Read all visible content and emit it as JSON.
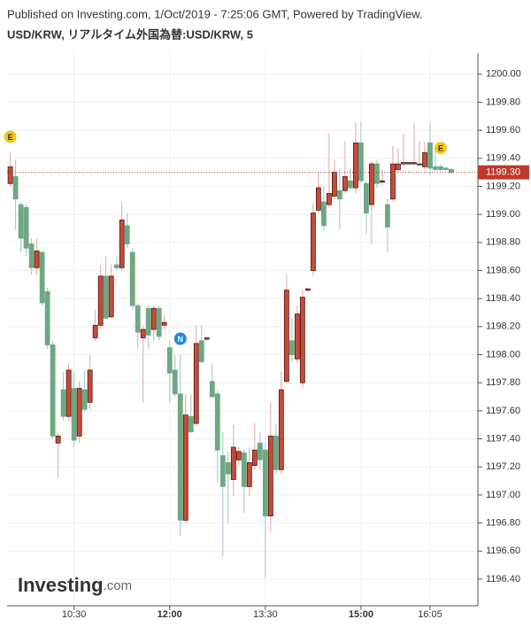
{
  "chart_data": {
    "type": "candlestick",
    "subtitle": "Published on Investing.com, 1/Oct/2019 - 7:25:06 GMT, Powered by TradingView.",
    "title": "USD/KRW, リアルタイム外国為替:USD/KRW, 5",
    "watermark": {
      "main": "Investing",
      "suffix": ".com"
    },
    "up_color": "#c94a3a",
    "down_color": "#6ea882",
    "up_wick": "#e6a3a3",
    "down_wick": "#9cc3c9",
    "x": [
      570,
      575,
      580,
      585,
      590,
      595,
      600,
      605,
      610,
      615,
      620,
      625,
      630,
      635,
      640,
      645,
      650,
      655,
      660,
      665,
      670,
      675,
      680,
      685,
      690,
      695,
      700,
      705,
      710,
      715,
      720,
      725,
      730,
      735,
      740,
      745,
      750,
      755,
      760,
      765,
      770,
      775,
      780,
      785,
      790,
      795,
      800,
      805,
      810,
      815,
      820,
      825,
      830,
      835,
      840,
      845,
      850,
      855,
      860,
      865,
      870,
      875,
      880,
      885,
      890,
      895,
      900,
      905,
      910,
      915,
      920,
      925,
      930,
      935,
      940,
      945,
      950,
      955,
      960,
      965,
      970,
      975,
      980,
      985
    ],
    "open": [
      1199.22,
      1199.27,
      1199.07,
      1199.05,
      1198.79,
      1198.62,
      1198.73,
      1198.45,
      1198.07,
      1197.37,
      1197.75,
      1197.56,
      1197.76,
      1197.42,
      1197.75,
      1197.66,
      1198.12,
      1198.21,
      1198.56,
      1198.27,
      1198.64,
      1198.62,
      1198.92,
      1198.73,
      1198.35,
      1198.12,
      1198.33,
      1198.18,
      1198.33,
      1198.21,
      1198.05,
      1197.89,
      1197.72,
      1196.82,
      1197.56,
      1197.51,
      1198.1,
      1198.11,
      1197.81,
      1197.72,
      1197.28,
      1197.23,
      1197.11,
      1197.25,
      1197.3,
      1197.06,
      1197.21,
      1197.37,
      1197.32,
      1196.85,
      1197.42,
      1197.18,
      1197.81,
      1198.1,
      1197.97,
      1197.8,
      1198.46,
      1198.6,
      1199.03,
      1199.09,
      1199.07,
      1199.13,
      1199.17,
      1199.17,
      1199.24,
      1199.19,
      1199.51,
      1199.22,
      1199.07,
      1199.36,
      1199.23,
      1199.07,
      1199.11,
      1199.32,
      1199.36,
      1199.36,
      1199.36,
      1199.36,
      1199.34,
      1199.51,
      1199.34,
      1199.34,
      1199.33,
      1199.32
    ],
    "high": [
      1199.44,
      1199.39,
      1199.09,
      1199.07,
      1198.83,
      1198.83,
      1198.74,
      1198.48,
      1198.1,
      1197.45,
      1197.88,
      1197.94,
      1197.88,
      1197.81,
      1197.89,
      1198.0,
      1198.32,
      1198.64,
      1198.7,
      1198.64,
      1198.7,
      1199.09,
      1199.01,
      1198.76,
      1198.37,
      1198.21,
      1198.35,
      1198.35,
      1198.35,
      1198.29,
      1198.1,
      1198.0,
      1198.0,
      1197.72,
      1197.72,
      1198.21,
      1198.21,
      1198.13,
      1197.94,
      1197.75,
      1197.45,
      1197.31,
      1197.5,
      1197.34,
      1197.32,
      1197.34,
      1197.51,
      1197.45,
      1197.37,
      1197.66,
      1197.5,
      1197.88,
      1198.57,
      1198.26,
      1198.35,
      1198.46,
      1198.47,
      1199.08,
      1199.3,
      1199.2,
      1199.58,
      1199.39,
      1199.33,
      1199.52,
      1199.33,
      1199.66,
      1199.66,
      1199.24,
      1199.38,
      1199.39,
      1199.32,
      1199.11,
      1199.49,
      1199.47,
      1199.58,
      1199.37,
      1199.65,
      1199.52,
      1199.52,
      1199.65,
      1199.49,
      1199.36,
      1199.34,
      1199.33
    ],
    "low": [
      1199.2,
      1198.89,
      1198.73,
      1198.7,
      1198.57,
      1198.57,
      1198.35,
      1198.04,
      1197.4,
      1197.12,
      1197.53,
      1197.53,
      1197.34,
      1197.37,
      1197.59,
      1197.61,
      1198.1,
      1198.18,
      1198.26,
      1198.26,
      1198.6,
      1198.6,
      1198.76,
      1198.32,
      1198.04,
      1197.66,
      1198.04,
      1198.1,
      1198.1,
      1198.18,
      1197.66,
      1197.7,
      1196.71,
      1196.8,
      1197.44,
      1197.5,
      1197.94,
      1198.1,
      1197.7,
      1197.09,
      1196.56,
      1196.8,
      1196.99,
      1197.21,
      1196.87,
      1196.99,
      1197.18,
      1197.18,
      1196.41,
      1196.74,
      1197.15,
      1197.15,
      1197.8,
      1197.95,
      1197.94,
      1197.76,
      1198.45,
      1198.56,
      1199.01,
      1198.88,
      1199.05,
      1199.11,
      1198.89,
      1199.15,
      1199.17,
      1199.15,
      1199.22,
      1198.86,
      1198.79,
      1199.19,
      1199.2,
      1198.73,
      1199.09,
      1199.3,
      1199.34,
      1199.36,
      1199.36,
      1199.34,
      1199.32,
      1199.28,
      1199.31,
      1199.31,
      1199.31,
      1199.29
    ],
    "close": [
      1199.34,
      1199.11,
      1198.83,
      1198.76,
      1198.62,
      1198.74,
      1198.37,
      1198.07,
      1197.42,
      1197.42,
      1197.56,
      1197.89,
      1197.39,
      1197.76,
      1197.61,
      1197.89,
      1198.21,
      1198.56,
      1198.26,
      1198.56,
      1198.62,
      1198.96,
      1198.79,
      1198.35,
      1198.16,
      1198.18,
      1198.14,
      1198.33,
      1198.13,
      1198.23,
      1197.87,
      1197.72,
      1196.82,
      1197.57,
      1197.45,
      1198.08,
      1197.95,
      1198.12,
      1197.7,
      1197.32,
      1197.06,
      1197.15,
      1197.34,
      1197.31,
      1197.06,
      1197.23,
      1197.32,
      1197.25,
      1196.85,
      1197.42,
      1197.18,
      1197.75,
      1198.46,
      1198.0,
      1198.29,
      1198.41,
      1198.47,
      1199.01,
      1199.19,
      1198.92,
      1199.15,
      1199.3,
      1199.11,
      1199.27,
      1199.19,
      1199.51,
      1199.24,
      1199.01,
      1199.36,
      1199.22,
      1199.24,
      1198.91,
      1199.36,
      1199.36,
      1199.37,
      1199.37,
      1199.37,
      1199.36,
      1199.44,
      1199.33,
      1199.32,
      1199.32,
      1199.32,
      1199.3
    ],
    "xlim": [
      567,
      1010
    ],
    "ylim": [
      1196.21,
      1200.15
    ],
    "xticks": [
      {
        "value": 630,
        "label": "10:30"
      },
      {
        "value": 720,
        "label": "12:00"
      },
      {
        "value": 810,
        "label": "13:30"
      },
      {
        "value": 900,
        "label": "15:00"
      },
      {
        "value": 965,
        "label": "16:05"
      }
    ],
    "yticks": [
      {
        "value": 1196.4,
        "label": "1196.40"
      },
      {
        "value": 1196.6,
        "label": "1196.60"
      },
      {
        "value": 1196.8,
        "label": "1196.80"
      },
      {
        "value": 1197,
        "label": "1197.00"
      },
      {
        "value": 1197.2,
        "label": "1197.20"
      },
      {
        "value": 1197.4,
        "label": "1197.40"
      },
      {
        "value": 1197.6,
        "label": "1197.60"
      },
      {
        "value": 1197.8,
        "label": "1197.80"
      },
      {
        "value": 1198,
        "label": "1198.00"
      },
      {
        "value": 1198.2,
        "label": "1198.20"
      },
      {
        "value": 1198.4,
        "label": "1198.40"
      },
      {
        "value": 1198.6,
        "label": "1198.60"
      },
      {
        "value": 1198.8,
        "label": "1198.80"
      },
      {
        "value": 1199,
        "label": "1199.00"
      },
      {
        "value": 1199.2,
        "label": "1199.20"
      },
      {
        "value": 1199.4,
        "label": "1199.40"
      },
      {
        "value": 1199.6,
        "label": "1199.60"
      },
      {
        "value": 1199.8,
        "label": "1199.80"
      },
      {
        "value": 1200,
        "label": "1200.00"
      }
    ],
    "last_price": {
      "value": 1199.3,
      "label": "1199.30",
      "color": "#c0392b"
    },
    "events": [
      {
        "x": 570,
        "label": "E",
        "color": "#f5c518"
      },
      {
        "x": 730,
        "label": "N",
        "color": "#1e88e5"
      },
      {
        "x": 975,
        "label": "E",
        "color": "#f5c518"
      }
    ],
    "grid": true
  }
}
